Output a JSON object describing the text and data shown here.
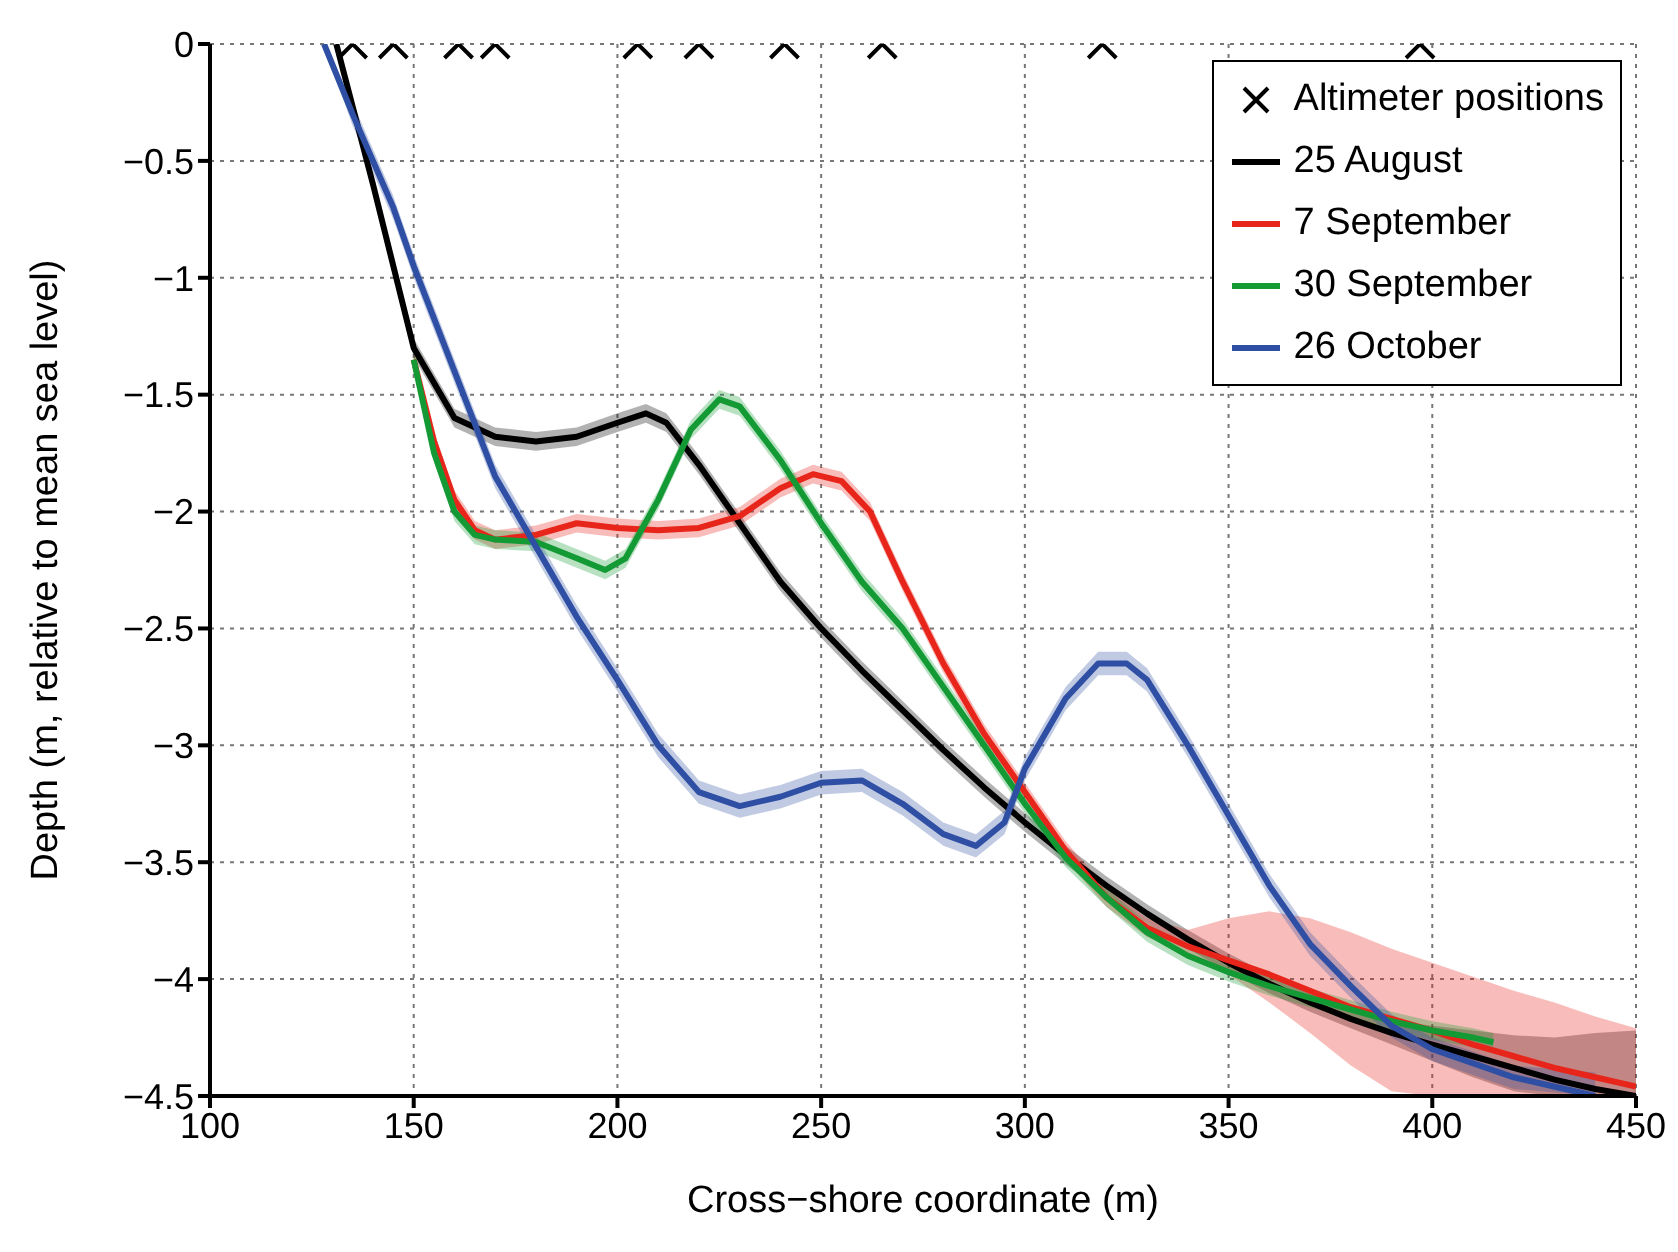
{
  "chart_data": {
    "type": "line",
    "xlabel": "Cross−shore coordinate (m)",
    "ylabel": "Depth (m, relative to mean sea level)",
    "xlim": [
      100,
      450
    ],
    "ylim": [
      -4.5,
      0
    ],
    "xticks": [
      100,
      150,
      200,
      250,
      300,
      350,
      400,
      450
    ],
    "yticks": [
      0,
      {
        "value": -0.5,
        "label": "−0.5"
      },
      {
        "value": -1,
        "label": "−1"
      },
      {
        "value": -1.5,
        "label": "−1.5"
      },
      {
        "value": -2,
        "label": "−2"
      },
      {
        "value": -2.5,
        "label": "−2.5"
      },
      {
        "value": -3,
        "label": "−3"
      },
      {
        "value": -3.5,
        "label": "−3.5"
      },
      {
        "value": -4,
        "label": "−4"
      },
      {
        "value": -4.5,
        "label": "−4.5"
      }
    ],
    "grid": true,
    "legend": "top right",
    "line_style": "solid",
    "series": [
      {
        "name": "Altimeter positions",
        "type": "scatter",
        "marker": "cross",
        "color": "#000000",
        "x": [
          135,
          145,
          161,
          170,
          205,
          220,
          241,
          265,
          319,
          397
        ],
        "values": [
          0,
          0,
          0,
          0,
          0,
          0,
          0,
          0,
          0,
          0
        ]
      },
      {
        "name": "25 August",
        "color": "#000000",
        "x": [
          131,
          140,
          150,
          160,
          170,
          180,
          190,
          200,
          207,
          212,
          220,
          230,
          240,
          250,
          260,
          270,
          280,
          290,
          300,
          310,
          320,
          330,
          340,
          350,
          360,
          370,
          380,
          390,
          400,
          410,
          420,
          430,
          440,
          450
        ],
        "values": [
          0,
          -0.6,
          -1.3,
          -1.6,
          -1.68,
          -1.7,
          -1.68,
          -1.62,
          -1.58,
          -1.62,
          -1.8,
          -2.05,
          -2.3,
          -2.5,
          -2.68,
          -2.85,
          -3.02,
          -3.18,
          -3.33,
          -3.47,
          -3.6,
          -3.72,
          -3.83,
          -3.93,
          -4.02,
          -4.1,
          -4.17,
          -4.23,
          -4.28,
          -4.33,
          -4.38,
          -4.43,
          -4.47,
          -4.5
        ],
        "upper": [
          0,
          -0.56,
          -1.26,
          -1.56,
          -1.64,
          -1.66,
          -1.64,
          -1.58,
          -1.54,
          -1.58,
          -1.76,
          -2.01,
          -2.26,
          -2.46,
          -2.64,
          -2.81,
          -2.98,
          -3.14,
          -3.29,
          -3.43,
          -3.56,
          -3.68,
          -3.79,
          -3.89,
          -3.98,
          -4.06,
          -4.13,
          -4.18,
          -4.2,
          -4.22,
          -4.24,
          -4.25,
          -4.23,
          -4.22
        ],
        "lower": [
          0,
          -0.64,
          -1.34,
          -1.64,
          -1.72,
          -1.74,
          -1.72,
          -1.66,
          -1.62,
          -1.66,
          -1.84,
          -2.09,
          -2.34,
          -2.54,
          -2.72,
          -2.89,
          -3.06,
          -3.22,
          -3.37,
          -3.51,
          -3.64,
          -3.76,
          -3.87,
          -3.97,
          -4.06,
          -4.14,
          -4.21,
          -4.28,
          -4.35,
          -4.42,
          -4.48,
          -4.5,
          -4.5,
          -4.5
        ]
      },
      {
        "name": "7 September",
        "color": "#e8251b",
        "x": [
          150,
          155,
          160,
          165,
          170,
          180,
          190,
          200,
          210,
          220,
          230,
          240,
          248,
          255,
          262,
          270,
          280,
          290,
          300,
          310,
          320,
          330,
          340,
          350,
          360,
          370,
          380,
          390,
          400,
          410,
          420,
          430,
          440,
          450
        ],
        "values": [
          -1.35,
          -1.7,
          -1.95,
          -2.08,
          -2.12,
          -2.1,
          -2.05,
          -2.07,
          -2.08,
          -2.07,
          -2.02,
          -1.9,
          -1.84,
          -1.87,
          -2.0,
          -2.3,
          -2.65,
          -2.95,
          -3.2,
          -3.45,
          -3.65,
          -3.78,
          -3.86,
          -3.92,
          -3.98,
          -4.05,
          -4.12,
          -4.17,
          -4.22,
          -4.28,
          -4.33,
          -4.38,
          -4.42,
          -4.46
        ],
        "upper": [
          -1.31,
          -1.66,
          -1.91,
          -2.04,
          -2.08,
          -2.06,
          -2.01,
          -2.03,
          -2.04,
          -2.03,
          -1.98,
          -1.86,
          -1.8,
          -1.83,
          -1.96,
          -2.26,
          -2.61,
          -2.91,
          -3.16,
          -3.41,
          -3.61,
          -3.74,
          -3.79,
          -3.74,
          -3.71,
          -3.74,
          -3.8,
          -3.87,
          -3.93,
          -3.99,
          -4.05,
          -4.1,
          -4.16,
          -4.21
        ],
        "lower": [
          -1.39,
          -1.74,
          -1.99,
          -2.12,
          -2.16,
          -2.14,
          -2.09,
          -2.11,
          -2.12,
          -2.11,
          -2.06,
          -1.94,
          -1.88,
          -1.91,
          -2.04,
          -2.34,
          -2.69,
          -2.99,
          -3.24,
          -3.49,
          -3.69,
          -3.82,
          -3.9,
          -3.98,
          -4.1,
          -4.23,
          -4.37,
          -4.48,
          -4.5,
          -4.5,
          -4.5,
          -4.5,
          -4.5,
          -4.5
        ]
      },
      {
        "name": "30 September",
        "color": "#139a35",
        "x": [
          150,
          155,
          160,
          165,
          170,
          180,
          190,
          197,
          202,
          210,
          218,
          225,
          230,
          240,
          250,
          260,
          270,
          280,
          290,
          300,
          310,
          320,
          330,
          340,
          350,
          360,
          370,
          380,
          390,
          400,
          410,
          415
        ],
        "values": [
          -1.35,
          -1.75,
          -2.0,
          -2.1,
          -2.12,
          -2.13,
          -2.2,
          -2.25,
          -2.2,
          -1.95,
          -1.65,
          -1.52,
          -1.55,
          -1.78,
          -2.05,
          -2.3,
          -2.5,
          -2.75,
          -3.0,
          -3.25,
          -3.48,
          -3.65,
          -3.8,
          -3.9,
          -3.97,
          -4.03,
          -4.08,
          -4.13,
          -4.18,
          -4.22,
          -4.25,
          -4.27
        ],
        "upper": [
          -1.31,
          -1.71,
          -1.96,
          -2.06,
          -2.08,
          -2.09,
          -2.16,
          -2.21,
          -2.16,
          -1.91,
          -1.61,
          -1.48,
          -1.51,
          -1.74,
          -2.01,
          -2.26,
          -2.46,
          -2.71,
          -2.96,
          -3.21,
          -3.44,
          -3.61,
          -3.76,
          -3.86,
          -3.93,
          -3.99,
          -4.04,
          -4.09,
          -4.14,
          -4.18,
          -4.21,
          -4.23
        ],
        "lower": [
          -1.39,
          -1.79,
          -2.04,
          -2.14,
          -2.16,
          -2.17,
          -2.24,
          -2.29,
          -2.24,
          -1.99,
          -1.69,
          -1.56,
          -1.59,
          -1.82,
          -2.09,
          -2.34,
          -2.54,
          -2.79,
          -3.04,
          -3.29,
          -3.52,
          -3.69,
          -3.84,
          -3.94,
          -4.01,
          -4.07,
          -4.12,
          -4.17,
          -4.22,
          -4.26,
          -4.29,
          -4.31
        ]
      },
      {
        "name": "26 October",
        "color": "#2e4fa3",
        "x": [
          128,
          135,
          145,
          150,
          160,
          170,
          180,
          190,
          200,
          210,
          220,
          230,
          240,
          250,
          260,
          270,
          280,
          288,
          295,
          300,
          310,
          318,
          325,
          330,
          340,
          350,
          360,
          370,
          380,
          390,
          400,
          420,
          440
        ],
        "values": [
          0,
          -0.3,
          -0.7,
          -0.95,
          -1.4,
          -1.85,
          -2.15,
          -2.45,
          -2.72,
          -3.0,
          -3.2,
          -3.26,
          -3.22,
          -3.16,
          -3.15,
          -3.25,
          -3.38,
          -3.43,
          -3.33,
          -3.1,
          -2.8,
          -2.65,
          -2.65,
          -2.72,
          -3.0,
          -3.3,
          -3.6,
          -3.85,
          -4.03,
          -4.2,
          -4.3,
          -4.42,
          -4.5
        ],
        "upper": [
          0,
          -0.25,
          -0.65,
          -0.9,
          -1.35,
          -1.8,
          -2.1,
          -2.4,
          -2.67,
          -2.95,
          -3.15,
          -3.21,
          -3.17,
          -3.11,
          -3.1,
          -3.2,
          -3.33,
          -3.38,
          -3.28,
          -3.05,
          -2.75,
          -2.6,
          -2.6,
          -2.67,
          -2.95,
          -3.25,
          -3.55,
          -3.8,
          -3.98,
          -4.15,
          -4.25,
          -4.37,
          -4.4
        ],
        "lower": [
          0,
          -0.35,
          -0.75,
          -1.0,
          -1.45,
          -1.9,
          -2.2,
          -2.5,
          -2.77,
          -3.05,
          -3.25,
          -3.31,
          -3.27,
          -3.21,
          -3.2,
          -3.3,
          -3.43,
          -3.48,
          -3.38,
          -3.15,
          -2.85,
          -2.7,
          -2.7,
          -2.77,
          -3.05,
          -3.35,
          -3.65,
          -3.9,
          -4.08,
          -4.25,
          -4.35,
          -4.47,
          -4.5
        ]
      }
    ]
  }
}
